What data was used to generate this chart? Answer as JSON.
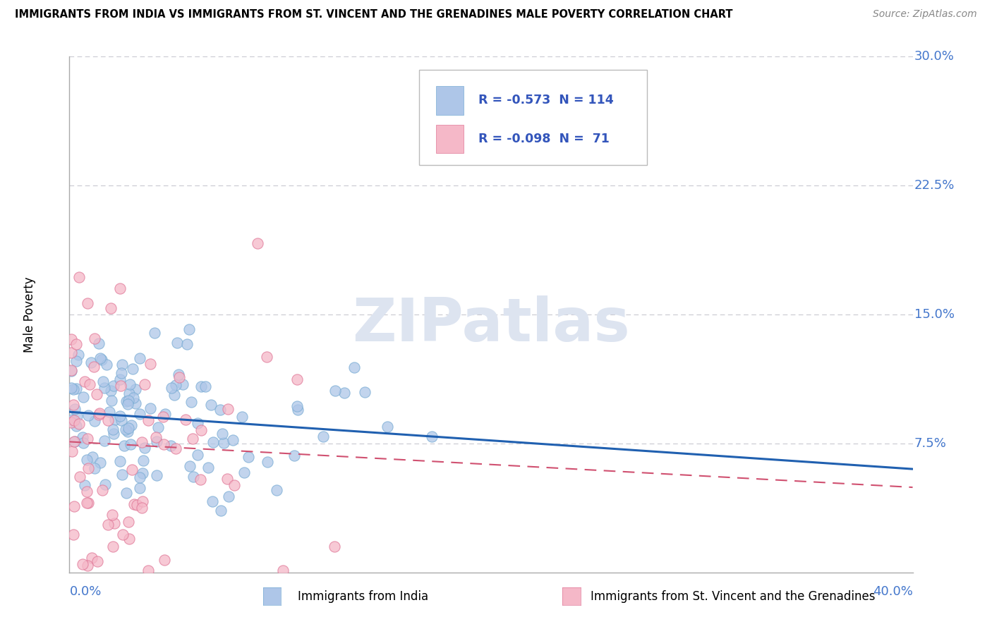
{
  "title": "IMMIGRANTS FROM INDIA VS IMMIGRANTS FROM ST. VINCENT AND THE GRENADINES MALE POVERTY CORRELATION CHART",
  "source": "Source: ZipAtlas.com",
  "ylabel": "Male Poverty",
  "R_india": -0.573,
  "N_india": 114,
  "R_svg": -0.098,
  "N_svg": 71,
  "india_color": "#aec6e8",
  "india_edge_color": "#7aadd4",
  "india_line_color": "#2060b0",
  "svg_color": "#f5b8c8",
  "svg_edge_color": "#e07898",
  "svg_line_color": "#d05070",
  "watermark_color": "#dde4f0",
  "ytick_vals": [
    0.075,
    0.15,
    0.225,
    0.3
  ],
  "ytick_labels": [
    "7.5%",
    "15.0%",
    "22.5%",
    "30.0%"
  ],
  "legend_india_text": "R = -0.573  N = 114",
  "legend_svg_text": "R = -0.098  N =  71"
}
